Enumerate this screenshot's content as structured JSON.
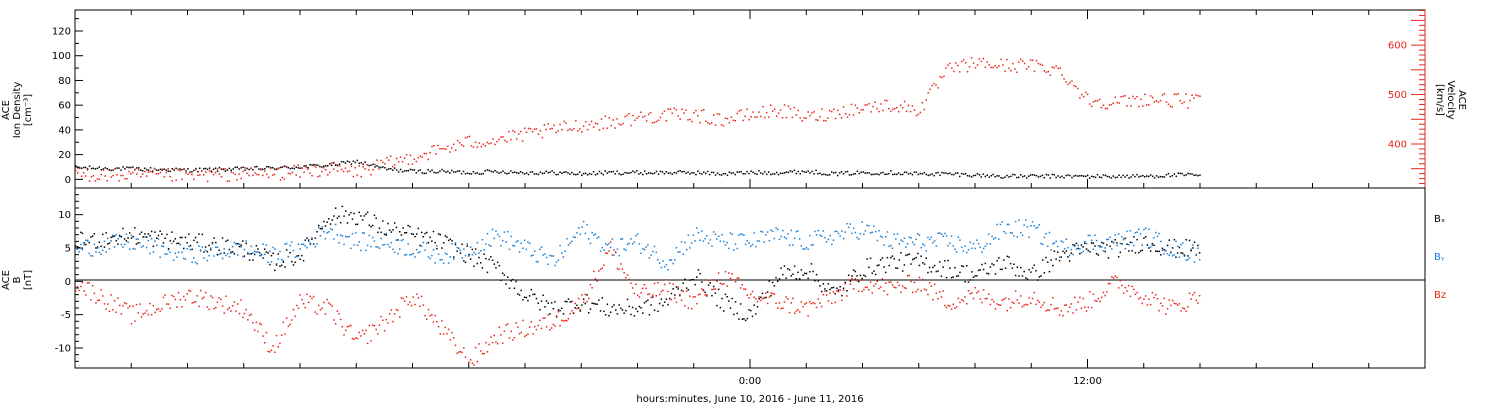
{
  "xlabel": "hours:minutes, June 10, 2016 - June 11, 2016",
  "x_ticks": [
    {
      "hour": 0,
      "label": "0:00"
    },
    {
      "hour": 12,
      "label": "12:00"
    }
  ],
  "x_range_hours": [
    -24,
    24
  ],
  "data_end_hour": 16,
  "colors": {
    "black": "#000000",
    "red": "#e8251b",
    "blue": "#1a7fd6"
  },
  "chart_data": [
    {
      "type": "scatter",
      "panel": "plasma",
      "title": "",
      "left_axis": {
        "label_lines": [
          "ACE",
          "Ion Density",
          "[cm⁻³]"
        ],
        "ylim": [
          -7,
          137
        ],
        "ticks": [
          "0",
          "20",
          "40",
          "60",
          "80",
          "100",
          "120"
        ]
      },
      "right_axis": {
        "label_lines": [
          "ACE",
          "Velocity",
          "[km/s]"
        ],
        "ylim": [
          311,
          671
        ],
        "ticks": [
          "400",
          "500",
          "600"
        ],
        "color": "#e8251b"
      },
      "series": [
        {
          "name": "",
          "axis": "left",
          "color": "#000000",
          "x": [
            -24,
            -22,
            -20,
            -18,
            -16.5,
            -15,
            -14,
            -13,
            -12,
            -11,
            -10,
            -9,
            -8,
            -7,
            -6,
            -5,
            -4,
            -3,
            -2,
            -1,
            0,
            1,
            2,
            3,
            4,
            5,
            6,
            7,
            8,
            9,
            10,
            11,
            12,
            13,
            14,
            15,
            16
          ],
          "y": [
            10,
            9,
            8,
            9,
            10,
            12,
            15,
            9,
            7,
            7,
            6,
            7,
            6,
            6,
            5,
            6,
            6,
            6,
            6,
            5,
            6,
            6,
            7,
            5,
            6,
            6,
            5,
            5,
            4,
            3,
            3,
            3,
            3,
            3,
            3,
            4,
            4
          ]
        },
        {
          "name": "",
          "axis": "right",
          "color": "#e8251b",
          "x": [
            -24,
            -22,
            -20,
            -18,
            -16.5,
            -15,
            -14,
            -13,
            -12,
            -11,
            -10,
            -9,
            -8,
            -7,
            -6,
            -5,
            -4,
            -3,
            -2,
            -1,
            0,
            1,
            2,
            3,
            4,
            5,
            6,
            7,
            8,
            9,
            10,
            11,
            12,
            13,
            14,
            15,
            16
          ],
          "y": [
            340,
            337,
            338,
            340,
            343,
            350,
            345,
            360,
            375,
            390,
            405,
            410,
            420,
            430,
            440,
            445,
            455,
            460,
            460,
            450,
            460,
            470,
            455,
            465,
            475,
            480,
            470,
            550,
            565,
            560,
            560,
            550,
            490,
            485,
            492,
            490,
            487
          ]
        }
      ]
    },
    {
      "type": "scatter",
      "panel": "magnetic",
      "title": "",
      "left_axis": {
        "label_lines": [
          "ACE",
          "B",
          "[nT]"
        ],
        "ylim": [
          -13,
          14
        ],
        "ticks": [
          "-10",
          "-5",
          "0",
          "5",
          "10"
        ]
      },
      "legend": [
        "Bₓ",
        "Bᵧ",
        "Bz"
      ],
      "legend_placement": "right",
      "series": [
        {
          "name": "Bₓ",
          "color": "#000000",
          "x": [
            -24,
            -22,
            -20,
            -18,
            -17,
            -16,
            -15,
            -14,
            -13,
            -12,
            -11,
            -10,
            -9,
            -8,
            -7,
            -6,
            -5,
            -4,
            -3,
            -2,
            -1,
            0,
            1,
            2,
            3,
            4,
            5,
            6,
            7,
            8,
            9,
            10,
            11,
            12,
            13,
            14,
            15,
            16
          ],
          "y": [
            6,
            7,
            6,
            5,
            3,
            4,
            10,
            10,
            8,
            7,
            6,
            4,
            2,
            -2,
            -4,
            -3,
            -4,
            -4,
            -3,
            1,
            -3,
            -5,
            1,
            2,
            -2,
            2,
            3,
            3,
            2,
            1,
            3,
            1,
            4,
            5,
            5,
            6,
            5,
            5
          ]
        },
        {
          "name": "Bᵧ",
          "color": "#1a7fd6",
          "x": [
            -24,
            -22,
            -20,
            -18,
            -17,
            -16,
            -15,
            -14,
            -13,
            -12,
            -11,
            -10,
            -9,
            -8,
            -7,
            -6,
            -5,
            -4,
            -3,
            -2,
            -1,
            0,
            1,
            2,
            3,
            4,
            5,
            6,
            7,
            8,
            9,
            10,
            11,
            12,
            13,
            14,
            15,
            16
          ],
          "y": [
            5,
            6,
            4,
            5,
            4,
            5,
            8,
            6,
            6,
            5,
            4,
            5,
            7,
            5,
            3,
            8,
            5,
            6,
            3,
            7,
            6,
            6,
            7,
            6,
            7,
            8,
            6,
            6,
            6,
            5,
            8,
            8,
            5,
            6,
            6,
            7,
            5,
            4
          ]
        },
        {
          "name": "Bz",
          "color": "#e8251b",
          "x": [
            -24,
            -22,
            -20,
            -18,
            -17,
            -16,
            -15,
            -14,
            -13,
            -12,
            -11,
            -10,
            -9,
            -8,
            -7,
            -6,
            -5,
            -4,
            -3,
            -2,
            -1,
            0,
            1,
            2,
            3,
            4,
            5,
            6,
            7,
            8,
            9,
            10,
            11,
            12,
            13,
            14,
            15,
            16
          ],
          "y": [
            0,
            -5,
            -2,
            -4,
            -10,
            -3,
            -4,
            -9,
            -6,
            -2,
            -7,
            -12,
            -8,
            -7,
            -6,
            -3,
            5,
            -2,
            -1,
            -3,
            1,
            -2,
            -3,
            -4,
            -2,
            0,
            -1,
            0,
            -3,
            -2,
            -3,
            -2,
            -4,
            -3,
            0,
            -2,
            -4,
            -2
          ]
        }
      ]
    }
  ]
}
